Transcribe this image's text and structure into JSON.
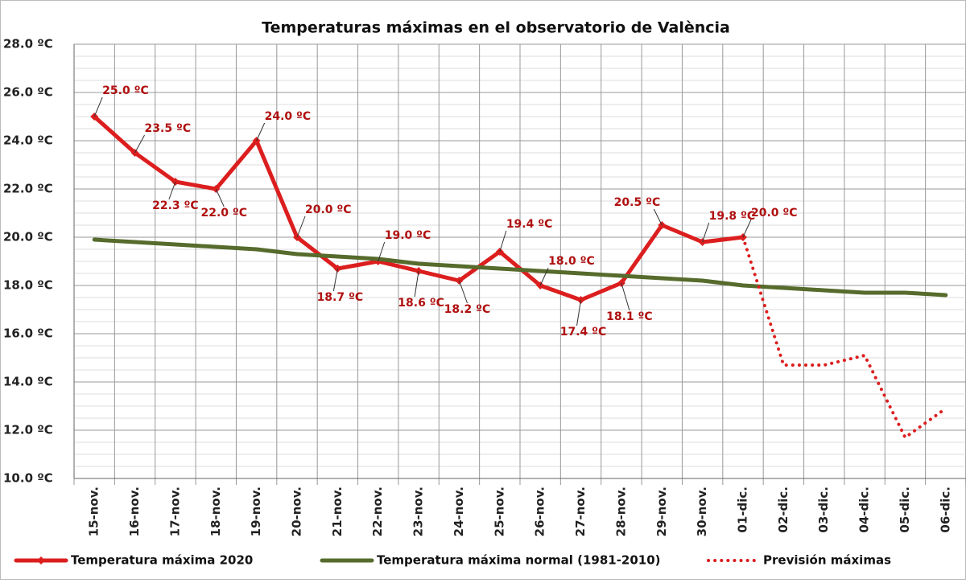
{
  "chart_data": {
    "type": "line",
    "title": "Temperaturas máximas en el observatorio de València",
    "categories": [
      "15-nov.",
      "16-nov.",
      "17-nov.",
      "18-nov.",
      "19-nov.",
      "20-nov.",
      "21-nov.",
      "22-nov.",
      "23-nov.",
      "24-nov.",
      "25-nov.",
      "26-nov.",
      "27-nov.",
      "28-nov.",
      "29-nov.",
      "30-nov.",
      "01-dic.",
      "02-dic.",
      "03-dic.",
      "04-dic.",
      "05-dic.",
      "06-dic."
    ],
    "series": [
      {
        "name": "Temperatura máxima 2020",
        "color": "#dc1e1e",
        "values": [
          25.0,
          23.5,
          22.3,
          22.0,
          24.0,
          20.0,
          18.7,
          19.0,
          18.6,
          18.2,
          19.4,
          18.0,
          17.4,
          18.1,
          20.5,
          19.8,
          20.0,
          null,
          null,
          null,
          null,
          null
        ],
        "value_labels": [
          "25.0 ºC",
          "23.5 ºC",
          "22.3 ºC",
          "22.0 ºC",
          "24.0 ºC",
          "20.0 ºC",
          "18.7 ºC",
          "19.0 ºC",
          "18.6 ºC",
          "18.2 ºC",
          "19.4 ºC",
          "18.0 ºC",
          "17.4 ºC",
          "18.1 ºC",
          "20.5 ºC",
          "19.8 ºC",
          "20.0 ºC",
          null,
          null,
          null,
          null,
          null
        ]
      },
      {
        "name": "Temperatura máxima normal (1981-2010)",
        "color": "#566b2c",
        "values": [
          19.9,
          19.8,
          19.7,
          19.6,
          19.5,
          19.3,
          19.2,
          19.1,
          18.9,
          18.8,
          18.7,
          18.6,
          18.5,
          18.4,
          18.3,
          18.2,
          18.0,
          17.9,
          17.8,
          17.7,
          17.7,
          17.6
        ]
      },
      {
        "name": "Previsión máximas",
        "color": "#dc1e1e",
        "dashed": true,
        "values": [
          null,
          null,
          null,
          null,
          null,
          null,
          null,
          null,
          null,
          null,
          null,
          null,
          null,
          null,
          null,
          null,
          20.0,
          14.7,
          14.7,
          15.1,
          11.7,
          12.9
        ]
      }
    ],
    "ylim": [
      10,
      28
    ],
    "yticks": [
      {
        "value": 10,
        "label": "10.0 ºC"
      },
      {
        "value": 12,
        "label": "12.0 ºC"
      },
      {
        "value": 14,
        "label": "14.0 ºC"
      },
      {
        "value": 16,
        "label": "16.0 ºC"
      },
      {
        "value": 18,
        "label": "18.0 ºC"
      },
      {
        "value": 20,
        "label": "20.0 ºC"
      },
      {
        "value": 22,
        "label": "22.0 ºC"
      },
      {
        "value": 24,
        "label": "24.0 ºC"
      },
      {
        "value": 26,
        "label": "26.0 ºC"
      },
      {
        "value": 28,
        "label": "28.0 ºC"
      }
    ],
    "grid": true,
    "legend": "bottom"
  }
}
